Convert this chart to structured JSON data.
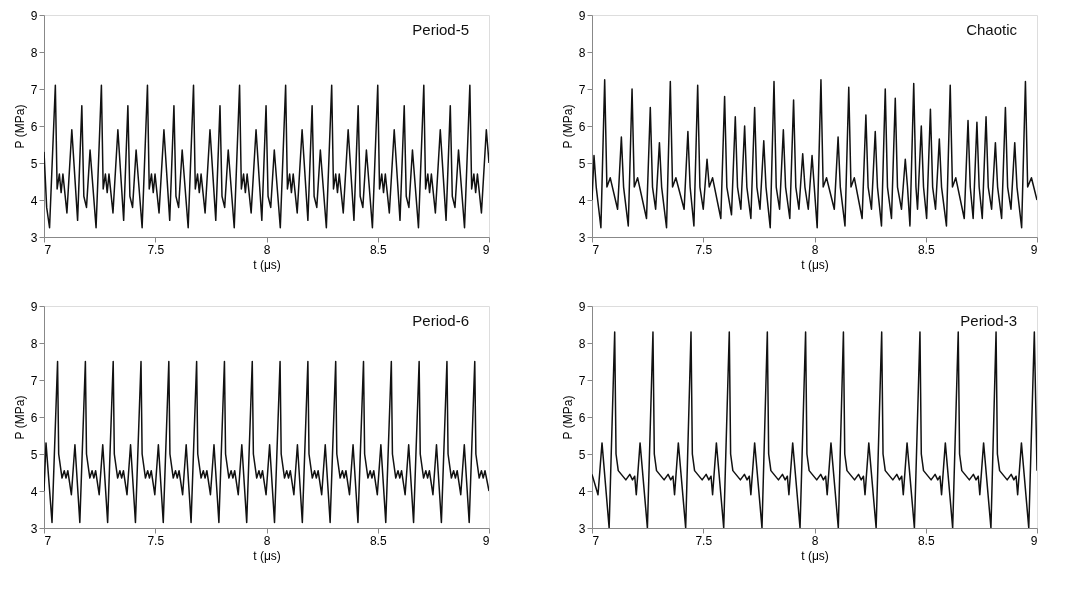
{
  "chart_data": [
    {
      "type": "line",
      "xlabel": "t (μs)",
      "ylabel": "P (MPa)",
      "annotations": [
        "Period-5"
      ],
      "xlim": [
        7,
        9
      ],
      "ylim": [
        3,
        9
      ],
      "xticks": [
        7,
        7.5,
        8,
        8.5,
        9
      ],
      "yticks": [
        3,
        4,
        5,
        6,
        7,
        8,
        9
      ],
      "grid": false,
      "x": [
        7.0,
        7.012,
        7.025,
        7.051,
        7.059,
        7.069,
        7.077,
        7.085,
        7.103,
        7.125,
        7.151,
        7.17,
        7.179,
        7.191,
        7.207,
        7.234,
        7.258,
        7.266,
        7.276,
        7.284,
        7.292,
        7.31,
        7.332,
        7.358,
        7.377,
        7.386,
        7.398,
        7.414,
        7.441,
        7.465,
        7.473,
        7.483,
        7.491,
        7.499,
        7.517,
        7.539,
        7.565,
        7.584,
        7.593,
        7.605,
        7.621,
        7.648,
        7.672,
        7.68,
        7.69,
        7.698,
        7.706,
        7.724,
        7.746,
        7.772,
        7.791,
        7.8,
        7.812,
        7.828,
        7.855,
        7.879,
        7.887,
        7.897,
        7.905,
        7.913,
        7.931,
        7.953,
        7.979,
        7.998,
        8.007,
        8.019,
        8.035,
        8.062,
        8.086,
        8.094,
        8.104,
        8.112,
        8.12,
        8.138,
        8.16,
        8.186,
        8.205,
        8.214,
        8.226,
        8.242,
        8.269,
        8.293,
        8.301,
        8.311,
        8.319,
        8.327,
        8.345,
        8.367,
        8.393,
        8.412,
        8.421,
        8.433,
        8.449,
        8.476,
        8.5,
        8.508,
        8.518,
        8.526,
        8.534,
        8.552,
        8.574,
        8.6,
        8.619,
        8.628,
        8.64,
        8.656,
        8.683,
        8.707,
        8.715,
        8.725,
        8.733,
        8.741,
        8.759,
        8.781,
        8.807,
        8.826,
        8.835,
        8.847,
        8.863,
        8.89,
        8.914,
        8.922,
        8.932,
        8.94,
        8.948,
        8.966,
        8.988,
        9.0
      ],
      "series": [
        {
          "color": "#111111",
          "values": [
            5.3,
            3.8,
            3.25,
            7.1,
            4.3,
            4.7,
            4.2,
            4.7,
            3.65,
            5.9,
            3.45,
            6.55,
            4.1,
            3.8,
            5.35,
            3.25,
            7.1,
            4.3,
            4.7,
            4.2,
            4.7,
            3.65,
            5.9,
            3.45,
            6.55,
            4.1,
            3.8,
            5.35,
            3.25,
            7.1,
            4.3,
            4.7,
            4.2,
            4.7,
            3.65,
            5.9,
            3.45,
            6.55,
            4.1,
            3.8,
            5.35,
            3.25,
            7.1,
            4.3,
            4.7,
            4.2,
            4.7,
            3.65,
            5.9,
            3.45,
            6.55,
            4.1,
            3.8,
            5.35,
            3.25,
            7.1,
            4.3,
            4.7,
            4.2,
            4.7,
            3.65,
            5.9,
            3.45,
            6.55,
            4.1,
            3.8,
            5.35,
            3.25,
            7.1,
            4.3,
            4.7,
            4.2,
            4.7,
            3.65,
            5.9,
            3.45,
            6.55,
            4.1,
            3.8,
            5.35,
            3.25,
            7.1,
            4.3,
            4.7,
            4.2,
            4.7,
            3.65,
            5.9,
            3.45,
            6.55,
            4.1,
            3.8,
            5.35,
            3.25,
            7.1,
            4.3,
            4.7,
            4.2,
            4.7,
            3.65,
            5.9,
            3.45,
            6.55,
            4.1,
            3.8,
            5.35,
            3.25,
            7.1,
            4.3,
            4.7,
            4.2,
            4.7,
            3.65,
            5.9,
            3.45,
            6.55,
            4.1,
            3.8,
            5.35,
            3.25,
            7.1,
            4.3,
            4.7,
            4.2,
            4.7,
            3.65,
            5.9,
            5.0
          ]
        }
      ]
    },
    {
      "type": "line",
      "xlabel": "t (μs)",
      "ylabel": "P (MPa)",
      "annotations": [
        "Chaotic"
      ],
      "xlim": [
        7,
        9
      ],
      "ylim": [
        3,
        9
      ],
      "xticks": [
        7,
        7.5,
        8,
        8.5,
        9
      ],
      "yticks": [
        3,
        4,
        5,
        6,
        7,
        8,
        9
      ],
      "grid": false,
      "x": [
        7.0,
        7.009,
        7.019,
        7.04,
        7.057,
        7.067,
        7.082,
        7.115,
        7.132,
        7.142,
        7.163,
        7.18,
        7.19,
        7.205,
        7.245,
        7.262,
        7.272,
        7.286,
        7.303,
        7.313,
        7.335,
        7.352,
        7.362,
        7.377,
        7.414,
        7.431,
        7.441,
        7.458,
        7.475,
        7.485,
        7.5,
        7.517,
        7.527,
        7.542,
        7.579,
        7.596,
        7.606,
        7.627,
        7.644,
        7.654,
        7.669,
        7.686,
        7.696,
        7.714,
        7.731,
        7.741,
        7.755,
        7.772,
        7.782,
        7.801,
        7.818,
        7.828,
        7.843,
        7.86,
        7.87,
        7.889,
        7.906,
        7.916,
        7.93,
        7.947,
        7.957,
        7.972,
        7.989,
        7.999,
        8.012,
        8.029,
        8.039,
        8.054,
        8.089,
        8.106,
        8.116,
        8.137,
        8.154,
        8.164,
        8.179,
        8.214,
        8.231,
        8.241,
        8.256,
        8.273,
        8.283,
        8.301,
        8.318,
        8.328,
        8.346,
        8.363,
        8.373,
        8.391,
        8.408,
        8.418,
        8.429,
        8.446,
        8.456,
        8.463,
        8.48,
        8.49,
        8.504,
        8.521,
        8.531,
        8.544,
        8.561,
        8.571,
        8.593,
        8.61,
        8.62,
        8.635,
        8.673,
        8.69,
        8.7,
        8.713,
        8.73,
        8.74,
        8.754,
        8.771,
        8.781,
        8.796,
        8.813,
        8.823,
        8.841,
        8.858,
        8.868,
        8.883,
        8.9,
        8.91,
        8.931,
        8.948,
        8.958,
        8.975,
        9.0
      ],
      "series": [
        {
          "color": "#111111",
          "values": [
            4.0,
            5.2,
            4.35,
            3.25,
            7.25,
            4.35,
            4.6,
            3.75,
            5.7,
            4.35,
            3.3,
            7.0,
            4.35,
            4.6,
            3.5,
            6.5,
            4.35,
            3.75,
            5.55,
            4.35,
            3.25,
            7.2,
            4.35,
            4.6,
            3.75,
            5.85,
            4.35,
            3.3,
            7.1,
            4.35,
            3.75,
            5.1,
            4.35,
            4.6,
            3.5,
            6.8,
            4.35,
            3.6,
            6.25,
            4.35,
            3.75,
            6.0,
            4.35,
            3.5,
            6.5,
            4.35,
            3.75,
            5.6,
            4.35,
            3.25,
            7.2,
            4.35,
            3.75,
            5.9,
            4.35,
            3.5,
            6.7,
            4.35,
            3.75,
            5.25,
            4.35,
            3.75,
            5.2,
            4.35,
            3.25,
            7.25,
            4.35,
            4.6,
            3.75,
            5.7,
            4.35,
            3.3,
            7.05,
            4.35,
            4.6,
            3.5,
            6.3,
            4.35,
            3.75,
            5.85,
            4.35,
            3.3,
            7.0,
            4.35,
            3.5,
            6.75,
            4.35,
            3.75,
            5.1,
            4.35,
            3.3,
            7.15,
            4.35,
            3.75,
            6.0,
            4.35,
            3.5,
            6.45,
            4.35,
            3.75,
            5.65,
            4.35,
            3.3,
            7.1,
            4.35,
            4.6,
            3.5,
            6.15,
            4.35,
            3.5,
            6.1,
            4.35,
            3.5,
            6.25,
            4.35,
            3.75,
            5.55,
            4.35,
            3.5,
            6.5,
            4.35,
            3.75,
            5.55,
            4.35,
            3.25,
            7.2,
            4.35,
            4.6,
            4.0
          ]
        }
      ]
    },
    {
      "type": "line",
      "xlabel": "t (μs)",
      "ylabel": "P (MPa)",
      "annotations": [
        "Period-6"
      ],
      "xlim": [
        7,
        9
      ],
      "ylim": [
        3,
        9
      ],
      "xticks": [
        7,
        7.5,
        8,
        8.5,
        9
      ],
      "yticks": [
        3,
        4,
        5,
        6,
        7,
        8,
        9
      ],
      "grid": false,
      "x": [
        7.0,
        7.009,
        7.036,
        7.061,
        7.066,
        7.081,
        7.091,
        7.099,
        7.107,
        7.123,
        7.139,
        7.161,
        7.186,
        7.191,
        7.206,
        7.216,
        7.224,
        7.232,
        7.248,
        7.264,
        7.286,
        7.311,
        7.316,
        7.331,
        7.341,
        7.349,
        7.357,
        7.373,
        7.389,
        7.411,
        7.436,
        7.441,
        7.456,
        7.466,
        7.474,
        7.482,
        7.498,
        7.514,
        7.536,
        7.561,
        7.566,
        7.581,
        7.591,
        7.599,
        7.607,
        7.623,
        7.639,
        7.661,
        7.686,
        7.691,
        7.706,
        7.716,
        7.724,
        7.732,
        7.748,
        7.764,
        7.786,
        7.811,
        7.816,
        7.831,
        7.841,
        7.849,
        7.857,
        7.873,
        7.889,
        7.911,
        7.936,
        7.941,
        7.956,
        7.966,
        7.974,
        7.982,
        7.998,
        8.014,
        8.036,
        8.061,
        8.066,
        8.081,
        8.091,
        8.099,
        8.107,
        8.123,
        8.139,
        8.161,
        8.186,
        8.191,
        8.206,
        8.216,
        8.224,
        8.232,
        8.248,
        8.264,
        8.286,
        8.311,
        8.316,
        8.331,
        8.341,
        8.349,
        8.357,
        8.373,
        8.389,
        8.411,
        8.436,
        8.441,
        8.456,
        8.466,
        8.474,
        8.482,
        8.498,
        8.514,
        8.536,
        8.561,
        8.566,
        8.581,
        8.591,
        8.599,
        8.607,
        8.623,
        8.639,
        8.661,
        8.686,
        8.691,
        8.706,
        8.716,
        8.724,
        8.732,
        8.748,
        8.764,
        8.786,
        8.811,
        8.816,
        8.831,
        8.841,
        8.849,
        8.857,
        8.873,
        8.889,
        8.911,
        8.936,
        8.941,
        8.956,
        8.966,
        8.974,
        8.982,
        9.0
      ],
      "series": [
        {
          "color": "#111111",
          "values": [
            4.0,
            5.3,
            3.15,
            7.5,
            5.0,
            4.35,
            4.55,
            4.35,
            4.55,
            3.9,
            5.25,
            3.15,
            7.5,
            5.0,
            4.35,
            4.55,
            4.35,
            4.55,
            3.9,
            5.25,
            3.15,
            7.5,
            5.0,
            4.35,
            4.55,
            4.35,
            4.55,
            3.9,
            5.25,
            3.15,
            7.5,
            5.0,
            4.35,
            4.55,
            4.35,
            4.55,
            3.9,
            5.25,
            3.15,
            7.5,
            5.0,
            4.35,
            4.55,
            4.35,
            4.55,
            3.9,
            5.25,
            3.15,
            7.5,
            5.0,
            4.35,
            4.55,
            4.35,
            4.55,
            3.9,
            5.25,
            3.15,
            7.5,
            5.0,
            4.35,
            4.55,
            4.35,
            4.55,
            3.9,
            5.25,
            3.15,
            7.5,
            5.0,
            4.35,
            4.55,
            4.35,
            4.55,
            3.9,
            5.25,
            3.15,
            7.5,
            5.0,
            4.35,
            4.55,
            4.35,
            4.55,
            3.9,
            5.25,
            3.15,
            7.5,
            5.0,
            4.35,
            4.55,
            4.35,
            4.55,
            3.9,
            5.25,
            3.15,
            7.5,
            5.0,
            4.35,
            4.55,
            4.35,
            4.55,
            3.9,
            5.25,
            3.15,
            7.5,
            5.0,
            4.35,
            4.55,
            4.35,
            4.55,
            3.9,
            5.25,
            3.15,
            7.5,
            5.0,
            4.35,
            4.55,
            4.35,
            4.55,
            3.9,
            5.25,
            3.15,
            7.5,
            5.0,
            4.35,
            4.55,
            4.35,
            4.55,
            3.9,
            5.25,
            3.15,
            7.5,
            5.0,
            4.35,
            4.55,
            4.35,
            4.55,
            3.9,
            5.25,
            3.15,
            7.5,
            5.0,
            4.35,
            4.55,
            4.35,
            4.55,
            4.0
          ]
        }
      ]
    },
    {
      "type": "line",
      "xlabel": "t (μs)",
      "ylabel": "P (MPa)",
      "annotations": [
        "Period-3"
      ],
      "xlim": [
        7,
        9
      ],
      "ylim": [
        3,
        9
      ],
      "xticks": [
        7,
        7.5,
        8,
        8.5,
        9
      ],
      "yticks": [
        3,
        4,
        5,
        6,
        7,
        8,
        9
      ],
      "grid": false,
      "x": [
        7.0,
        7.027,
        7.045,
        7.077,
        7.102,
        7.108,
        7.118,
        7.152,
        7.17,
        7.182,
        7.192,
        7.199,
        7.216,
        7.249,
        7.274,
        7.28,
        7.29,
        7.324,
        7.342,
        7.354,
        7.364,
        7.371,
        7.388,
        7.421,
        7.445,
        7.451,
        7.461,
        7.495,
        7.513,
        7.525,
        7.535,
        7.542,
        7.559,
        7.592,
        7.617,
        7.623,
        7.633,
        7.667,
        7.685,
        7.697,
        7.707,
        7.714,
        7.731,
        7.764,
        7.788,
        7.794,
        7.804,
        7.838,
        7.856,
        7.868,
        7.878,
        7.885,
        7.902,
        7.935,
        7.96,
        7.966,
        7.976,
        8.01,
        8.028,
        8.04,
        8.05,
        8.057,
        8.074,
        8.107,
        8.13,
        8.136,
        8.146,
        8.18,
        8.198,
        8.21,
        8.22,
        8.227,
        8.244,
        8.277,
        8.302,
        8.308,
        8.318,
        8.352,
        8.37,
        8.382,
        8.392,
        8.399,
        8.416,
        8.449,
        8.474,
        8.48,
        8.49,
        8.524,
        8.542,
        8.554,
        8.564,
        8.571,
        8.588,
        8.621,
        8.646,
        8.652,
        8.662,
        8.696,
        8.714,
        8.726,
        8.736,
        8.743,
        8.76,
        8.793,
        8.816,
        8.822,
        8.832,
        8.866,
        8.884,
        8.896,
        8.906,
        8.913,
        8.93,
        8.963,
        8.988,
        9.0
      ],
      "series": [
        {
          "color": "#111111",
          "values": [
            4.45,
            3.9,
            5.3,
            3.0,
            8.3,
            5.0,
            4.55,
            4.3,
            4.45,
            4.3,
            4.4,
            3.9,
            5.3,
            3.0,
            8.3,
            5.0,
            4.55,
            4.3,
            4.45,
            4.3,
            4.4,
            3.9,
            5.3,
            3.0,
            8.3,
            5.0,
            4.55,
            4.3,
            4.45,
            4.3,
            4.4,
            3.9,
            5.3,
            3.0,
            8.3,
            5.0,
            4.55,
            4.3,
            4.45,
            4.3,
            4.4,
            3.9,
            5.3,
            3.0,
            8.3,
            5.0,
            4.55,
            4.3,
            4.45,
            4.3,
            4.4,
            3.9,
            5.3,
            3.0,
            8.3,
            5.0,
            4.55,
            4.3,
            4.45,
            4.3,
            4.4,
            3.9,
            5.3,
            3.0,
            8.3,
            5.0,
            4.55,
            4.3,
            4.45,
            4.3,
            4.4,
            3.9,
            5.3,
            3.0,
            8.3,
            5.0,
            4.55,
            4.3,
            4.45,
            4.3,
            4.4,
            3.9,
            5.3,
            3.0,
            8.3,
            5.0,
            4.55,
            4.3,
            4.45,
            4.3,
            4.4,
            3.9,
            5.3,
            3.0,
            8.3,
            5.0,
            4.55,
            4.3,
            4.45,
            4.3,
            4.4,
            3.9,
            5.3,
            3.0,
            8.3,
            5.0,
            4.55,
            4.3,
            4.45,
            4.3,
            4.4,
            3.9,
            5.3,
            3.0,
            8.3,
            4.55
          ]
        }
      ]
    }
  ]
}
